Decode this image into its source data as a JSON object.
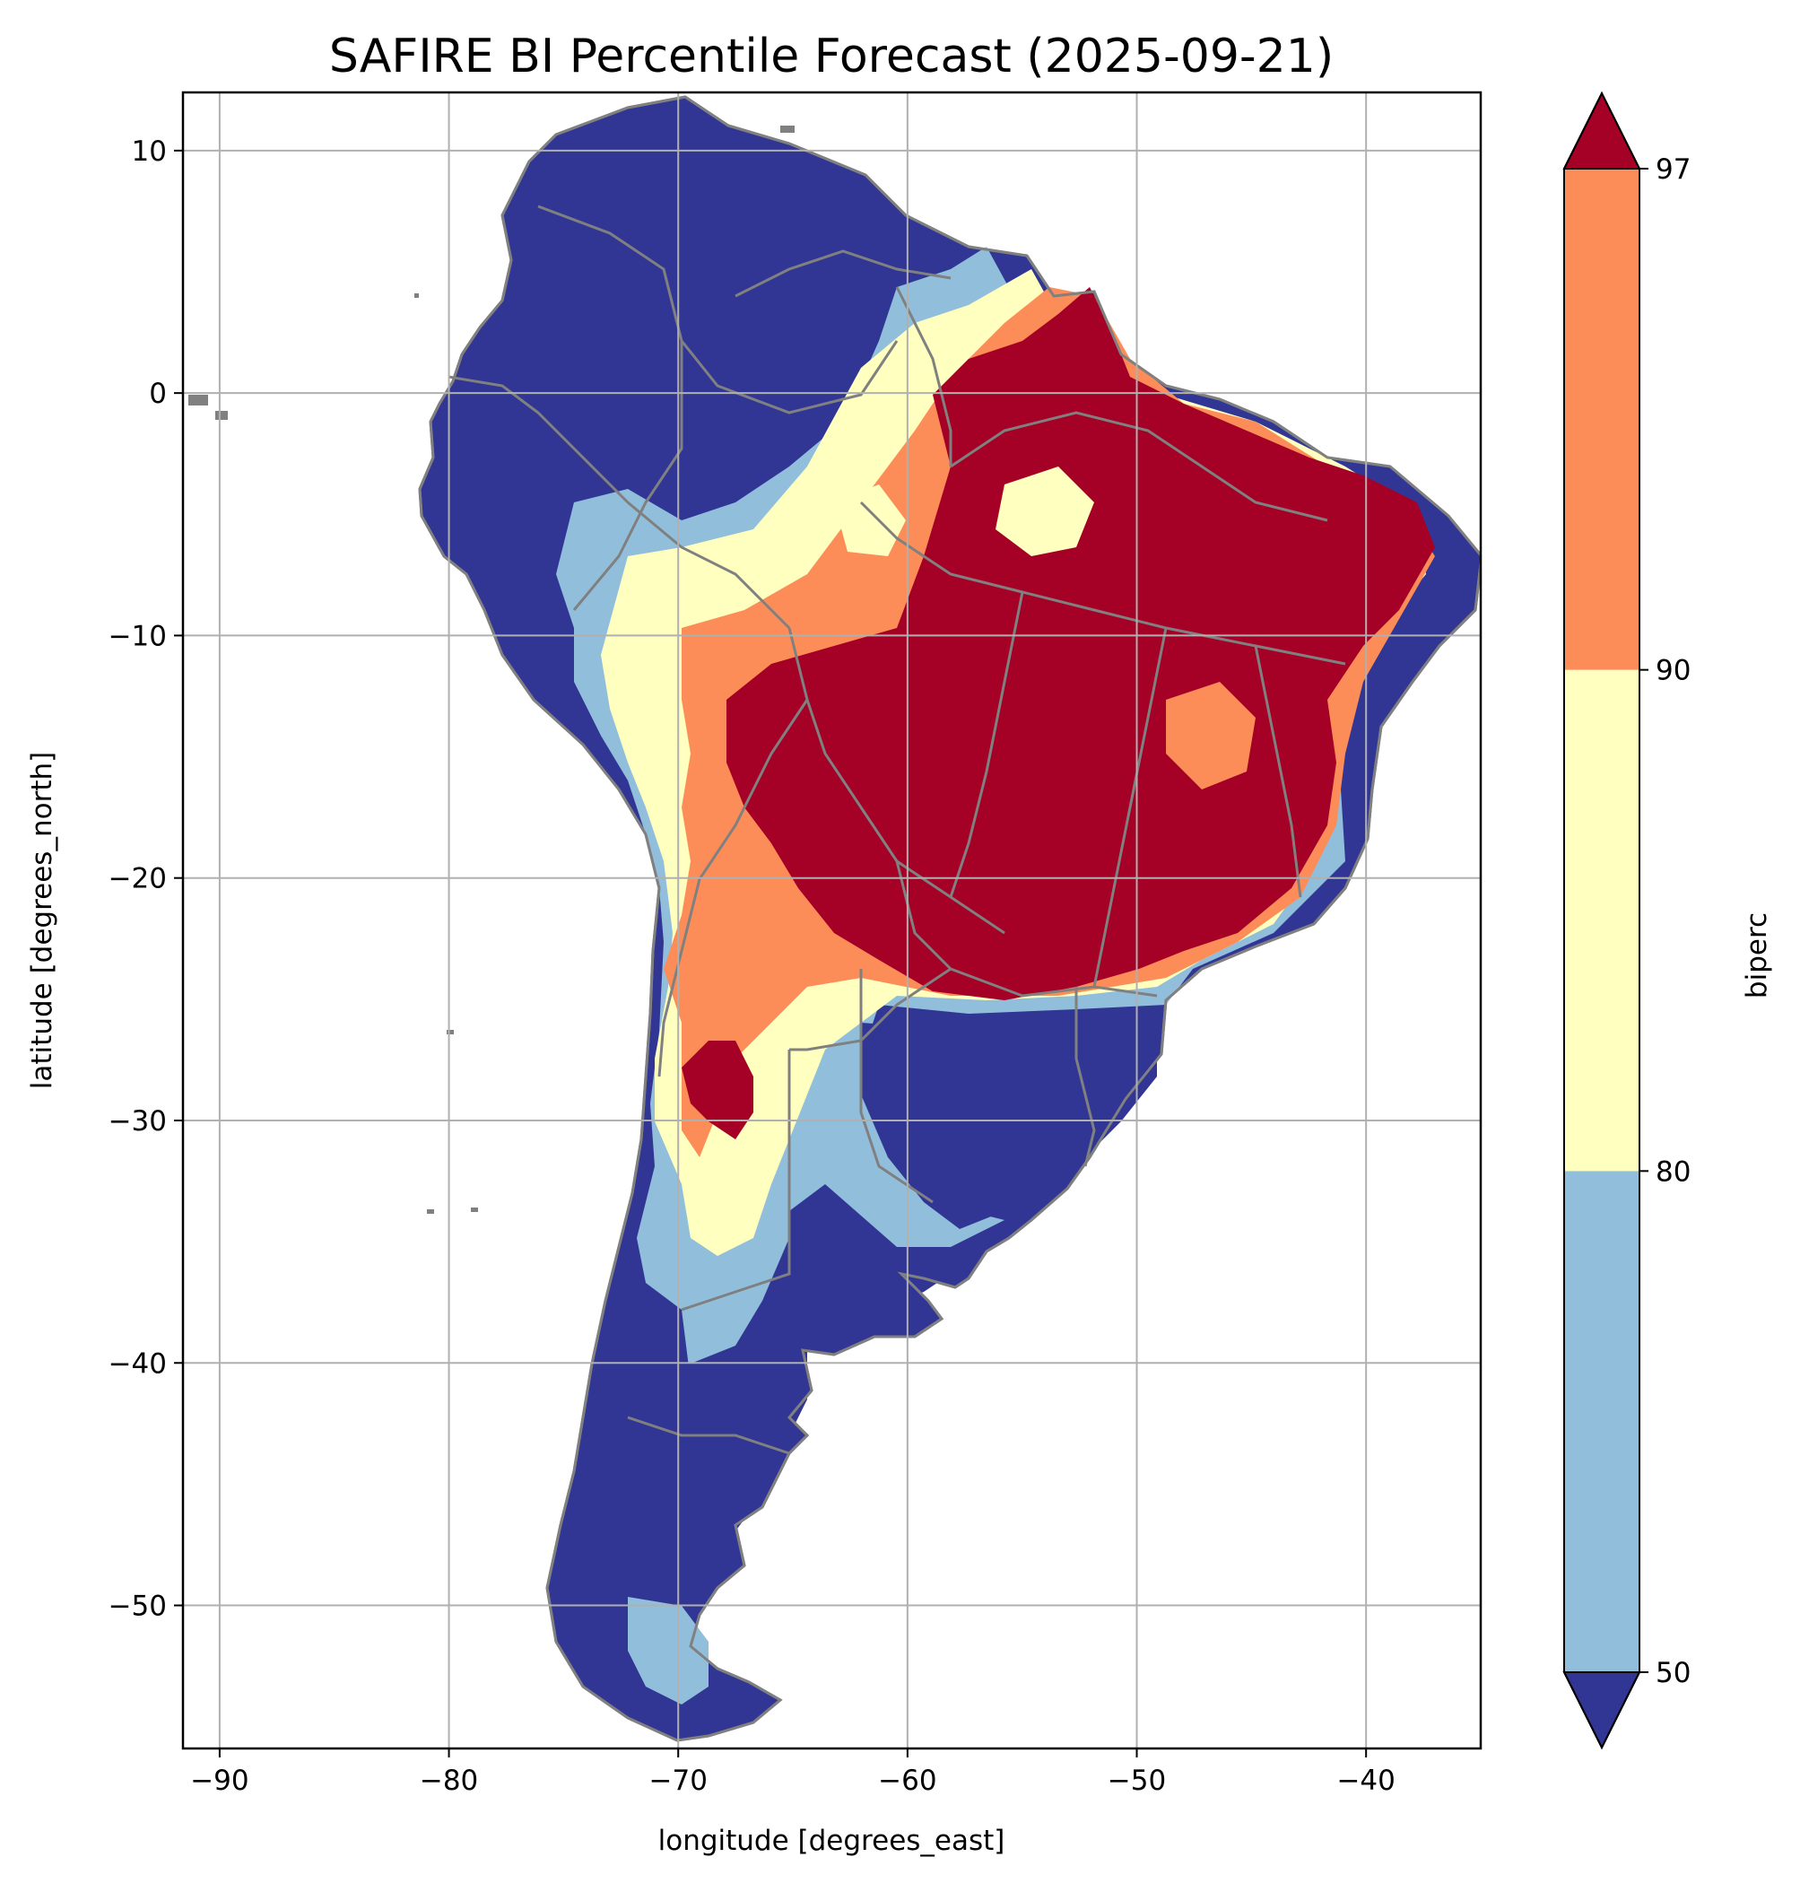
{
  "title": "SAFIRE BI Percentile Forecast (2025-09-21)",
  "map": {
    "xlabel": "longitude [degrees_east]",
    "ylabel": "latitude [degrees_north]",
    "xlim": [
      -91.6,
      -35.0
    ],
    "ylim": [
      -55.9,
      12.4
    ],
    "x_ticks": [
      -90,
      -80,
      -70,
      -60,
      -50,
      -40
    ],
    "y_ticks": [
      10,
      0,
      -10,
      -20,
      -30,
      -40,
      -50
    ],
    "x_tick_labels": [
      "−90",
      "−80",
      "−70",
      "−60",
      "−50",
      "−40"
    ],
    "y_tick_labels": [
      "10",
      "0",
      "−10",
      "−20",
      "−30",
      "−40",
      "−50"
    ],
    "grid": true,
    "boundary_color": "#808080"
  },
  "colorbar": {
    "label": "biperc",
    "boundaries": [
      50,
      80,
      90,
      97
    ],
    "tick_labels": [
      "50",
      "80",
      "90",
      "97"
    ],
    "extend": "both",
    "colors": {
      "below_50": "#313695",
      "50_80": "#91bfdb",
      "80_90": "#ffffbf",
      "90_97": "#fc8d59",
      "above_97": "#a50026"
    }
  }
}
